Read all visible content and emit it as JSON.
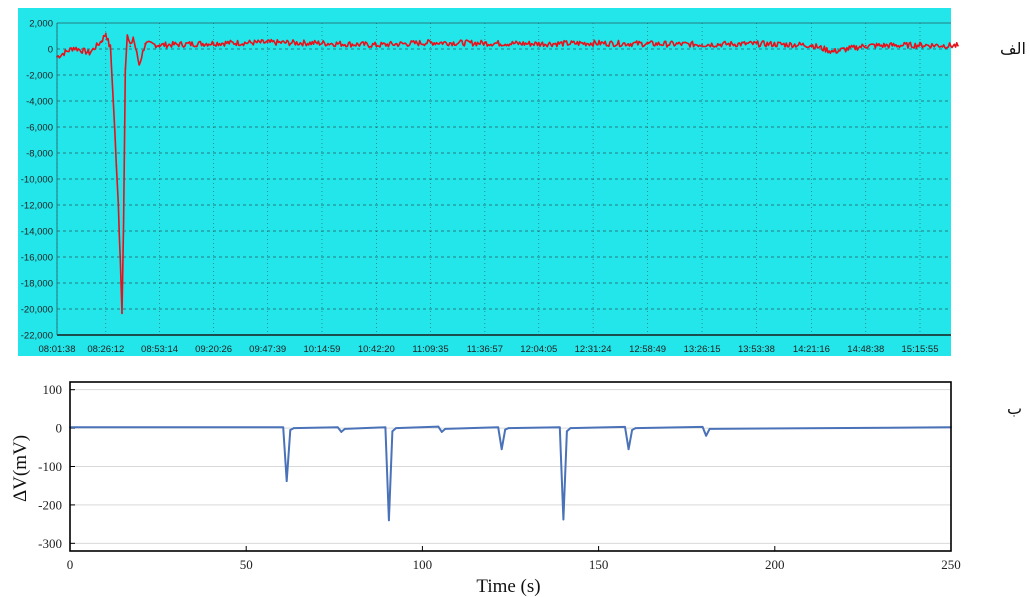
{
  "labels": {
    "panel_a": "الف",
    "panel_b": "ب"
  },
  "chart_data": [
    {
      "type": "line",
      "panel": "panel-a",
      "title": "",
      "xlabel": "",
      "ylabel": "",
      "ylim": [
        -22000,
        2000
      ],
      "yticks": [
        2000,
        0,
        -2000,
        -4000,
        -6000,
        -8000,
        -10000,
        -12000,
        -14000,
        -16000,
        -18000,
        -20000,
        -22000
      ],
      "ytick_labels": [
        "2,000",
        "0",
        "-2,000",
        "-4,000",
        "-6,000",
        "-8,000",
        "-10,000",
        "-12,000",
        "-14,000",
        "-16,000",
        "-18,000",
        "-20,000",
        "-22,000"
      ],
      "xtick_labels": [
        "08:01:38",
        "08:26:12",
        "08:53:14",
        "09:20:26",
        "09:47:39",
        "10:14:59",
        "10:42:20",
        "11:09:35",
        "11:36:57",
        "12:04:05",
        "12:31:24",
        "12:58:49",
        "13:26:15",
        "13:53:38",
        "14:21:16",
        "14:48:38",
        "15:15:55"
      ],
      "background": "#22e6ea",
      "grid": true,
      "series": [
        {
          "color": "#e8101a",
          "x": [
            "08:01:38",
            "08:10:00",
            "08:18:00",
            "08:24:00",
            "08:26:12",
            "08:28:30",
            "08:30:00",
            "08:31:30",
            "08:32:30",
            "08:33:30",
            "08:34:20",
            "08:35:10",
            "08:36:00",
            "08:37:00",
            "08:38:30",
            "08:40:00",
            "08:43:00",
            "08:46:00",
            "08:53:14",
            "09:20:26",
            "09:47:39",
            "10:14:59",
            "10:42:20",
            "11:09:35",
            "11:36:57",
            "12:04:05",
            "12:31:24",
            "12:58:49",
            "13:26:15",
            "13:53:38",
            "14:21:16",
            "14:32:00",
            "14:48:38",
            "15:15:55",
            "15:35:00"
          ],
          "y": [
            -600,
            100,
            -300,
            600,
            1200,
            0,
            -4000,
            -9000,
            -12000,
            -16000,
            -20300,
            -13000,
            -1500,
            1000,
            200,
            900,
            -1200,
            400,
            300,
            450,
            500,
            450,
            300,
            500,
            450,
            400,
            450,
            400,
            350,
            400,
            300,
            -200,
            250,
            300,
            250
          ]
        }
      ]
    },
    {
      "type": "line",
      "panel": "panel-b",
      "title": "",
      "xlabel": "Time (s)",
      "ylabel": "ΔV(mV)",
      "xlim": [
        0,
        250
      ],
      "ylim": [
        -320,
        120
      ],
      "xticks": [
        0,
        50,
        100,
        150,
        200,
        250
      ],
      "yticks": [
        100,
        0,
        -100,
        -200,
        -300
      ],
      "grid": true,
      "series": [
        {
          "color": "#4a72b8",
          "x": [
            0,
            60.5,
            61.5,
            62.5,
            63.5,
            76,
            77,
            78,
            89.5,
            90.5,
            91.5,
            92.5,
            104.5,
            105.5,
            106.5,
            121.5,
            122.5,
            123.5,
            124.5,
            139,
            140,
            141,
            142,
            157.5,
            158.5,
            159.5,
            160.5,
            179.5,
            180.5,
            181.5,
            250
          ],
          "y": [
            2,
            2,
            -138,
            -5,
            0,
            2,
            -10,
            -2,
            2,
            -240,
            -8,
            0,
            4,
            -10,
            -2,
            2,
            -55,
            -4,
            0,
            2,
            -238,
            -8,
            0,
            3,
            -55,
            -5,
            0,
            3,
            -20,
            -2,
            2
          ]
        }
      ]
    }
  ]
}
